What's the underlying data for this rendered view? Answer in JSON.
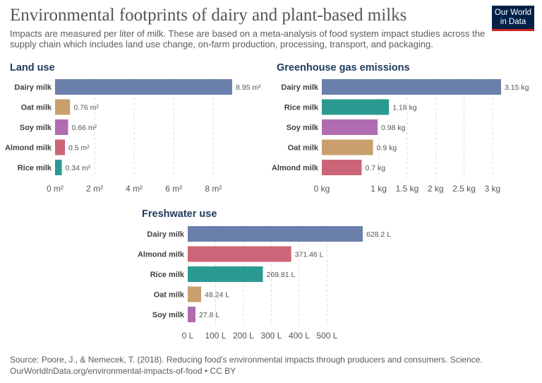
{
  "title": "Environmental footprints of dairy and plant-based milks",
  "subtitle": "Impacts are measured per liter of milk. These are based on a meta-analysis of food system impact studies across the supply chain which includes land use change, on-farm production, processing, transport, and packaging.",
  "logo": {
    "line1": "Our World",
    "line2": "in Data"
  },
  "footer": {
    "source": "Source: Poore, J., & Nemecek, T. (2018). Reducing food's environmental impacts through producers and consumers. Science.",
    "credit": "OurWorldInData.org/environmental-impacts-of-food • CC BY"
  },
  "colors": {
    "Dairy milk": "#6a7fab",
    "Oat milk": "#c9a06d",
    "Soy milk": "#b06cb0",
    "Almond milk": "#cc6577",
    "Rice milk": "#2a9a90"
  },
  "chart_data": [
    {
      "type": "bar",
      "orientation": "horizontal",
      "title": "Land use",
      "categories": [
        "Dairy milk",
        "Oat milk",
        "Soy milk",
        "Almond milk",
        "Rice milk"
      ],
      "values": [
        8.95,
        0.76,
        0.66,
        0.5,
        0.34
      ],
      "value_labels": [
        "8.95 m²",
        "0.76 m²",
        "0.66 m²",
        "0.5 m²",
        "0.34 m²"
      ],
      "xlim": [
        0,
        8.95
      ],
      "ticks": [
        0,
        2,
        4,
        6,
        8
      ],
      "tick_labels": [
        "0 m²",
        "2 m²",
        "4 m²",
        "6 m²",
        "8 m²"
      ],
      "grid": true
    },
    {
      "type": "bar",
      "orientation": "horizontal",
      "title": "Greenhouse gas emissions",
      "categories": [
        "Dairy milk",
        "Rice milk",
        "Soy milk",
        "Oat milk",
        "Almond milk"
      ],
      "values": [
        3.15,
        1.18,
        0.98,
        0.9,
        0.7
      ],
      "value_labels": [
        "3.15 kg",
        "1.18 kg",
        "0.98 kg",
        "0.9 kg",
        "0.7 kg"
      ],
      "xlim": [
        0,
        3.15
      ],
      "ticks": [
        0,
        1,
        1.5,
        2,
        2.5,
        3
      ],
      "tick_labels": [
        "0 kg",
        "1 kg",
        "1.5 kg",
        "2 kg",
        "2.5 kg",
        "3 kg"
      ],
      "grid": true
    },
    {
      "type": "bar",
      "orientation": "horizontal",
      "title": "Freshwater use",
      "categories": [
        "Dairy milk",
        "Almond milk",
        "Rice milk",
        "Oat milk",
        "Soy milk"
      ],
      "values": [
        628.2,
        371.46,
        269.81,
        48.24,
        27.8
      ],
      "value_labels": [
        "628.2 L",
        "371.46 L",
        "269.81 L",
        "48.24 L",
        "27.8 L"
      ],
      "xlim": [
        0,
        628.2
      ],
      "ticks": [
        0,
        100,
        200,
        300,
        400,
        500
      ],
      "tick_labels": [
        "0 L",
        "100 L",
        "200 L",
        "300 L",
        "400 L",
        "500 L"
      ],
      "grid": true
    }
  ]
}
